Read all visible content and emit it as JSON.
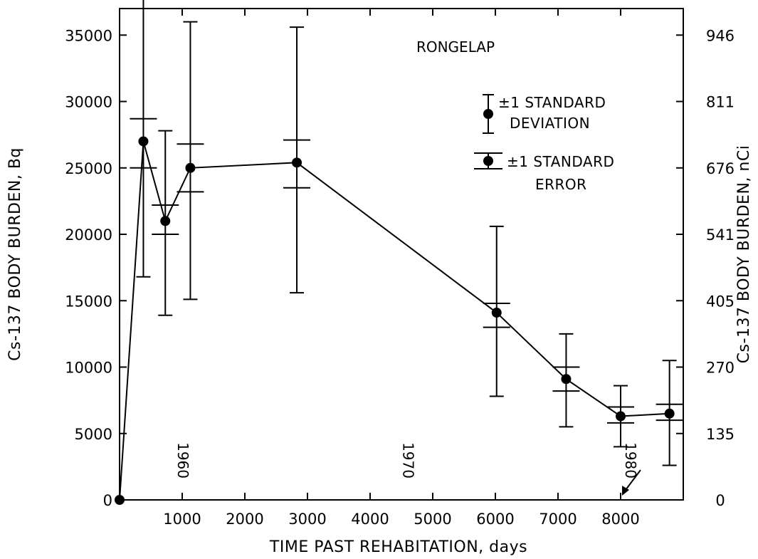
{
  "chart_data": {
    "type": "line",
    "title": "RONGELAP",
    "xlabel": "TIME PAST REHABITATION, days",
    "ylabel": "Cs-137 BODY BURDEN, Bq",
    "ylabel_right": "Cs-137 BODY BURDEN, nCi",
    "xlim": [
      0,
      9000
    ],
    "ylim": [
      0,
      37000
    ],
    "grid": false,
    "legend_position": "top-right",
    "x_ticks": [
      1000,
      2000,
      3000,
      4000,
      5000,
      6000,
      7000,
      8000
    ],
    "y_ticks": [
      0,
      5000,
      10000,
      15000,
      20000,
      25000,
      30000,
      35000
    ],
    "y_right_ticks": [
      "0",
      "135",
      "270",
      "405",
      "541",
      "676",
      "811",
      "946"
    ],
    "year_annotations": [
      {
        "label": "1960",
        "x": 1100
      },
      {
        "label": "1970",
        "x": 4700
      },
      {
        "label": "1980",
        "x": 8250
      }
    ],
    "legend": [
      {
        "label_lines": [
          "±1 STANDARD",
          "DEVIATION"
        ],
        "kind": "sd"
      },
      {
        "label_lines": [
          "±1 STANDARD",
          "ERROR"
        ],
        "kind": "se"
      }
    ],
    "series": [
      {
        "points": [
          {
            "x": 0,
            "y": 0
          },
          {
            "x": 380,
            "y": 27000,
            "sd": [
              16800,
              38200
            ],
            "se": [
              25000,
              28700
            ]
          },
          {
            "x": 730,
            "y": 21000,
            "sd": [
              13900,
              27800
            ],
            "se": [
              20000,
              22200
            ]
          },
          {
            "x": 1130,
            "y": 25000,
            "sd": [
              15100,
              36000
            ],
            "se": [
              23200,
              26800
            ]
          },
          {
            "x": 2830,
            "y": 25400,
            "sd": [
              15600,
              35600
            ],
            "se": [
              23500,
              27100
            ]
          },
          {
            "x": 6020,
            "y": 14100,
            "sd": [
              7800,
              20600
            ],
            "se": [
              13000,
              14800
            ]
          },
          {
            "x": 7130,
            "y": 9100,
            "sd": [
              5500,
              12500
            ],
            "se": [
              8200,
              10000
            ]
          },
          {
            "x": 8000,
            "y": 6300,
            "sd": [
              4000,
              8600
            ],
            "se": [
              5800,
              7000
            ]
          },
          {
            "x": 8780,
            "y": 6500,
            "sd": [
              2600,
              10500
            ],
            "se": [
              6000,
              7200
            ]
          }
        ]
      }
    ]
  }
}
